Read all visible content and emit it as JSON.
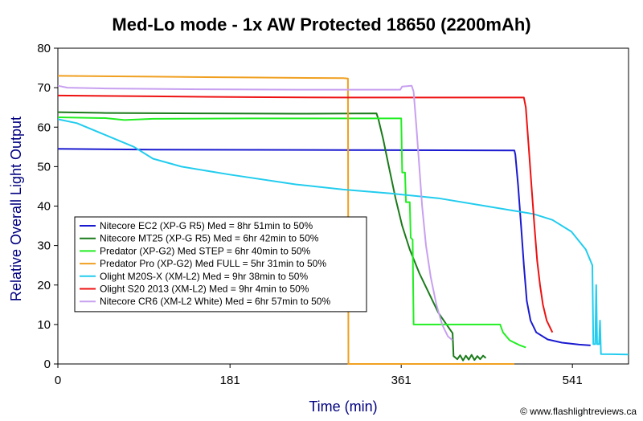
{
  "chart_data": {
    "type": "line",
    "title": "Med-Lo mode - 1x AW Protected 18650 (2200mAh)",
    "xlabel": "Time (min)",
    "ylabel": "Relative Overall Light Output",
    "xlim": [
      0,
      600
    ],
    "ylim": [
      0,
      80
    ],
    "x_ticks": [
      0,
      181,
      361,
      541
    ],
    "y_ticks": [
      0,
      10,
      20,
      30,
      40,
      50,
      60,
      70,
      80
    ],
    "grid": false,
    "legend_position": "lower-left",
    "footer": "© www.flashlightreviews.ca",
    "series": [
      {
        "name": "Nitecore EC2 (XP-G R5) Med = 8hr 51min to 50%",
        "color": "#1a1ad0",
        "points": [
          [
            0,
            54.5
          ],
          [
            100,
            54.3
          ],
          [
            300,
            54.2
          ],
          [
            480,
            54.1
          ],
          [
            481,
            53
          ],
          [
            484,
            45
          ],
          [
            487,
            35
          ],
          [
            490,
            25
          ],
          [
            493,
            16
          ],
          [
            497,
            11
          ],
          [
            503,
            8
          ],
          [
            515,
            6.2
          ],
          [
            530,
            5.4
          ],
          [
            548,
            4.9
          ],
          [
            560,
            4.7
          ]
        ]
      },
      {
        "name": "Nitecore MT25 (XP-G R5) Med = 6hr 42min to 50%",
        "color": "#1a7a1a",
        "points": [
          [
            0,
            63.8
          ],
          [
            50,
            63.6
          ],
          [
            150,
            63.5
          ],
          [
            250,
            63.4
          ],
          [
            335,
            63.5
          ],
          [
            337,
            62
          ],
          [
            342,
            57
          ],
          [
            348,
            50
          ],
          [
            355,
            42
          ],
          [
            362,
            35
          ],
          [
            370,
            29
          ],
          [
            380,
            23
          ],
          [
            390,
            18
          ],
          [
            400,
            13
          ],
          [
            410,
            9.5
          ],
          [
            415,
            7.8
          ],
          [
            416,
            2
          ],
          [
            420,
            1.2
          ],
          [
            423,
            2.2
          ],
          [
            426,
            0.9
          ],
          [
            429,
            2.1
          ],
          [
            432,
            1.1
          ],
          [
            435,
            2.3
          ],
          [
            438,
            1
          ],
          [
            441,
            2
          ],
          [
            444,
            1.2
          ],
          [
            447,
            2.1
          ],
          [
            450,
            1.5
          ]
        ]
      },
      {
        "name": "Predator (XP-G2) Med STEP = 6hr 40min to 50%",
        "color": "#22ee22",
        "points": [
          [
            0,
            62.5
          ],
          [
            50,
            62.3
          ],
          [
            70,
            61.8
          ],
          [
            100,
            62.1
          ],
          [
            200,
            62.2
          ],
          [
            300,
            62.2
          ],
          [
            361,
            62.2
          ],
          [
            362,
            48.5
          ],
          [
            365,
            48.5
          ],
          [
            366,
            41
          ],
          [
            370,
            41
          ],
          [
            371,
            32
          ],
          [
            373,
            31.5
          ],
          [
            374,
            10
          ],
          [
            380,
            10
          ],
          [
            465,
            10
          ],
          [
            468,
            8
          ],
          [
            475,
            6
          ],
          [
            485,
            4.8
          ],
          [
            492,
            4.2
          ]
        ]
      },
      {
        "name": "Predator Pro (XP-G2) Med FULL = 5hr 31min to 50%",
        "color": "#f0a020",
        "points": [
          [
            0,
            73
          ],
          [
            100,
            72.8
          ],
          [
            200,
            72.6
          ],
          [
            300,
            72.4
          ],
          [
            305,
            72.3
          ],
          [
            305.5,
            0
          ],
          [
            480,
            0
          ]
        ]
      },
      {
        "name": "Olight M20S-X (XM-L2) Med = 9hr 38min to 50%",
        "color": "#22ccee",
        "points": [
          [
            0,
            62
          ],
          [
            20,
            61
          ],
          [
            50,
            58
          ],
          [
            80,
            55
          ],
          [
            100,
            52
          ],
          [
            130,
            50
          ],
          [
            180,
            48
          ],
          [
            250,
            45.5
          ],
          [
            300,
            44.2
          ],
          [
            350,
            43.2
          ],
          [
            400,
            42
          ],
          [
            450,
            40
          ],
          [
            500,
            38
          ],
          [
            520,
            36.5
          ],
          [
            540,
            33.5
          ],
          [
            555,
            29
          ],
          [
            562,
            25
          ],
          [
            563,
            5
          ],
          [
            565,
            5
          ],
          [
            566,
            20
          ],
          [
            567,
            5
          ],
          [
            569,
            5
          ],
          [
            570,
            11
          ],
          [
            571,
            2.5
          ],
          [
            600,
            2.4
          ]
        ]
      },
      {
        "name": "Olight S20 2013 (XM-L2) Med = 9hr 4min to 50%",
        "color": "#ee1111",
        "points": [
          [
            0,
            68
          ],
          [
            100,
            67.8
          ],
          [
            200,
            67.6
          ],
          [
            300,
            67.5
          ],
          [
            400,
            67.5
          ],
          [
            490,
            67.5
          ],
          [
            492,
            65
          ],
          [
            495,
            55
          ],
          [
            498,
            45
          ],
          [
            501,
            35
          ],
          [
            504,
            26
          ],
          [
            507,
            20
          ],
          [
            510,
            15
          ],
          [
            514,
            11
          ],
          [
            520,
            8
          ]
        ]
      },
      {
        "name": "Nitecore CR6 (XM-L2 White) Med = 6hr 57min to 50%",
        "color": "#c8a0f0",
        "points": [
          [
            0,
            70.5
          ],
          [
            10,
            70
          ],
          [
            50,
            69.8
          ],
          [
            150,
            69.6
          ],
          [
            250,
            69.5
          ],
          [
            360,
            69.5
          ],
          [
            362,
            70.3
          ],
          [
            372,
            70.5
          ],
          [
            374,
            69
          ],
          [
            377,
            60
          ],
          [
            380,
            50
          ],
          [
            383,
            40
          ],
          [
            387,
            30
          ],
          [
            392,
            22
          ],
          [
            398,
            15
          ],
          [
            404,
            10
          ],
          [
            410,
            7
          ],
          [
            415,
            6
          ]
        ]
      }
    ]
  }
}
